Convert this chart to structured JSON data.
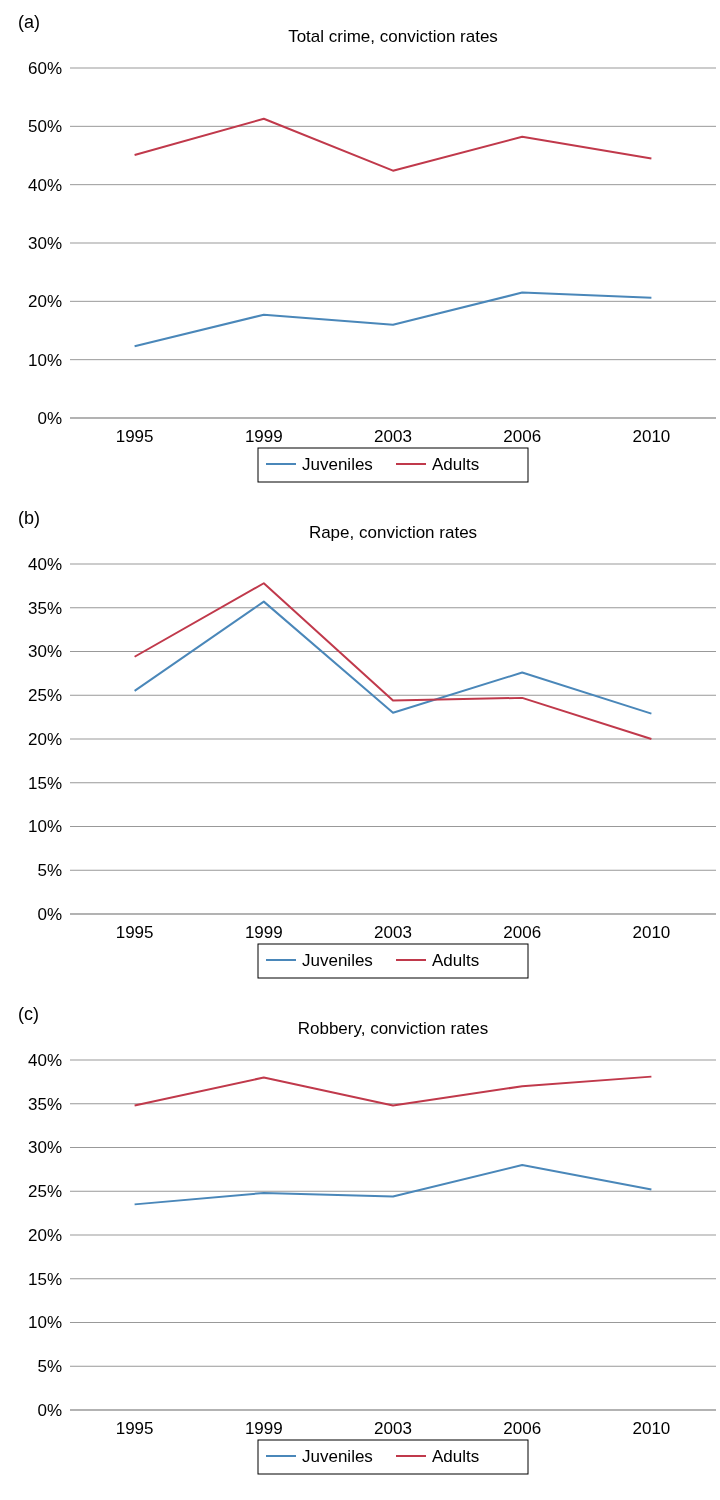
{
  "chart_data": [
    {
      "type": "line",
      "title": "Total crime, conviction rates",
      "annotations": [
        "(a)"
      ],
      "categories": [
        "1995",
        "1999",
        "2003",
        "2006",
        "2010"
      ],
      "series": [
        {
          "name": "Juveniles",
          "color": "#4a87b9",
          "values": [
            12.3,
            17.7,
            16.0,
            21.5,
            20.6
          ]
        },
        {
          "name": "Adults",
          "color": "#c0394b",
          "values": [
            45.1,
            51.3,
            42.4,
            48.2,
            44.5
          ]
        }
      ],
      "ylim": [
        0,
        60
      ],
      "yticks": [
        {
          "value": 0,
          "label": "0%"
        },
        {
          "value": 10,
          "label": "10%"
        },
        {
          "value": 20,
          "label": "20%"
        },
        {
          "value": 30,
          "label": "30%"
        },
        {
          "value": 40,
          "label": "40%"
        },
        {
          "value": 50,
          "label": "50%"
        },
        {
          "value": 60,
          "label": "60%"
        }
      ],
      "grid": "y",
      "legend": "bottom",
      "marker": "none"
    },
    {
      "type": "line",
      "title": "Rape, conviction rates",
      "annotations": [
        "(b)"
      ],
      "categories": [
        "1995",
        "1999",
        "2003",
        "2006",
        "2010"
      ],
      "series": [
        {
          "name": "Juveniles",
          "color": "#4a87b9",
          "values": [
            25.5,
            35.7,
            23.0,
            27.6,
            22.9
          ]
        },
        {
          "name": "Adults",
          "color": "#c0394b",
          "values": [
            29.4,
            37.8,
            24.4,
            24.7,
            20.0
          ]
        }
      ],
      "ylim": [
        0,
        40
      ],
      "yticks": [
        {
          "value": 0,
          "label": "0%"
        },
        {
          "value": 5,
          "label": "5%"
        },
        {
          "value": 10,
          "label": "10%"
        },
        {
          "value": 15,
          "label": "15%"
        },
        {
          "value": 20,
          "label": "20%"
        },
        {
          "value": 25,
          "label": "25%"
        },
        {
          "value": 30,
          "label": "30%"
        },
        {
          "value": 35,
          "label": "35%"
        },
        {
          "value": 40,
          "label": "40%"
        }
      ],
      "grid": "y",
      "legend": "bottom",
      "marker": "none"
    },
    {
      "type": "line",
      "title": "Robbery, conviction rates",
      "annotations": [
        "(c)"
      ],
      "categories": [
        "1995",
        "1999",
        "2003",
        "2006",
        "2010"
      ],
      "series": [
        {
          "name": "Juveniles",
          "color": "#4a87b9",
          "values": [
            23.5,
            24.8,
            24.4,
            28.0,
            25.2
          ]
        },
        {
          "name": "Adults",
          "color": "#c0394b",
          "values": [
            34.8,
            38.0,
            34.8,
            37.0,
            38.1
          ]
        }
      ],
      "ylim": [
        0,
        40
      ],
      "yticks": [
        {
          "value": 0,
          "label": "0%"
        },
        {
          "value": 5,
          "label": "5%"
        },
        {
          "value": 10,
          "label": "10%"
        },
        {
          "value": 15,
          "label": "15%"
        },
        {
          "value": 20,
          "label": "20%"
        },
        {
          "value": 25,
          "label": "25%"
        },
        {
          "value": 30,
          "label": "30%"
        },
        {
          "value": 35,
          "label": "35%"
        },
        {
          "value": 40,
          "label": "40%"
        }
      ],
      "grid": "y",
      "legend": "bottom",
      "marker": "none"
    }
  ]
}
